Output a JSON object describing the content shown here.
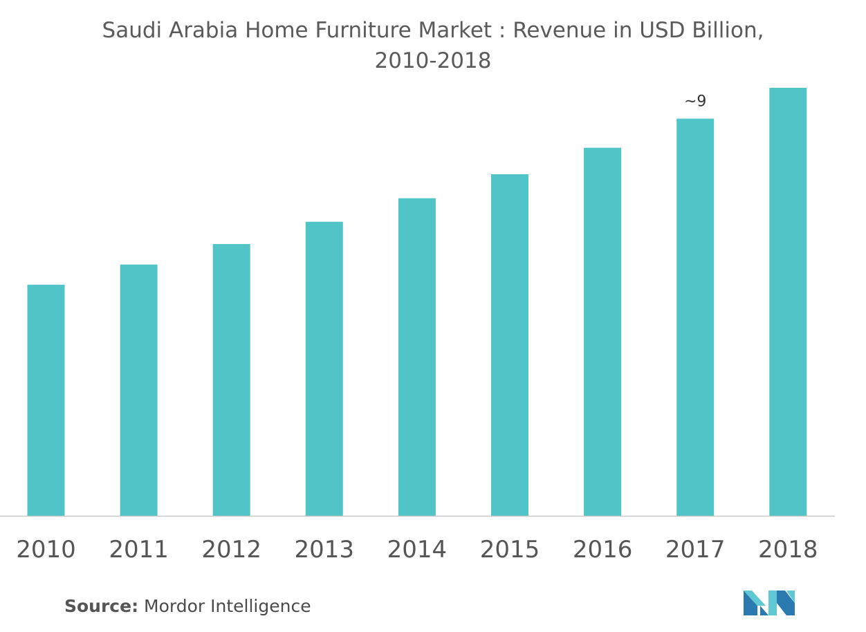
{
  "chart_data": {
    "type": "bar",
    "title_line1": "Saudi Arabia Home Furniture Market : Revenue in USD Billion,",
    "title_line2": "2010-2018",
    "categories": [
      "2010",
      "2011",
      "2012",
      "2013",
      "2014",
      "2015",
      "2016",
      "2017",
      "2018"
    ],
    "values": [
      5.4,
      5.87,
      6.35,
      6.87,
      7.42,
      7.98,
      8.6,
      9.28,
      10.0
    ],
    "annotations": [
      {
        "category": "2017",
        "text": "~9"
      }
    ],
    "xlabel": "",
    "ylabel": "",
    "ylim": [
      0,
      10
    ],
    "grid": false,
    "bar_color": "#50c4c6",
    "axis_color": "#c8c8c8"
  },
  "source": {
    "label": "Source:",
    "text": " Mordor Intelligence"
  },
  "logo": {
    "icon": "mordor-intelligence-logo-icon",
    "colors": [
      "#2a7ab0",
      "#5fc8d2"
    ]
  }
}
